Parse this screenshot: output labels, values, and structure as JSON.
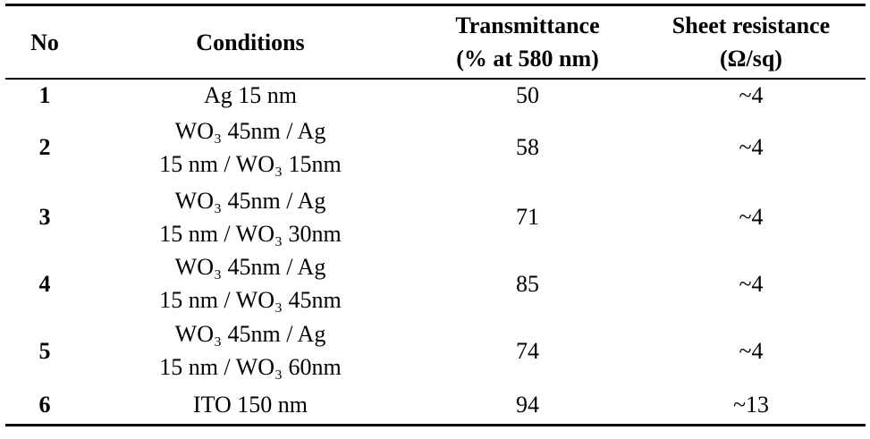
{
  "table": {
    "header": [
      [
        "No"
      ],
      [
        "Conditions"
      ],
      [
        "Transmittance",
        "(% at 580 nm)"
      ],
      [
        "Sheet resistance",
        "(Ω/sq)"
      ]
    ],
    "rows": [
      [
        [
          "1"
        ],
        [
          "Ag 15 nm"
        ],
        [
          "50"
        ],
        [
          "~4"
        ]
      ],
      [
        [
          "2"
        ],
        [
          "WO₃ 45nm / Ag",
          "15 nm / WO₃ 15nm"
        ],
        [
          "58"
        ],
        [
          "~4"
        ]
      ],
      [
        [
          "3"
        ],
        [
          "WO₃ 45nm / Ag",
          "15 nm / WO₃ 30nm"
        ],
        [
          "71"
        ],
        [
          "~4"
        ]
      ],
      [
        [
          "4"
        ],
        [
          "WO₃ 45nm / Ag",
          "15 nm / WO₃ 45nm"
        ],
        [
          "85"
        ],
        [
          "~4"
        ]
      ],
      [
        [
          "5"
        ],
        [
          "WO₃ 45nm / Ag",
          "15 nm / WO₃ 60nm"
        ],
        [
          "74"
        ],
        [
          "~4"
        ]
      ],
      [
        [
          "6"
        ],
        [
          "ITO 150 nm"
        ],
        [
          "94"
        ],
        [
          "~13"
        ]
      ]
    ]
  }
}
